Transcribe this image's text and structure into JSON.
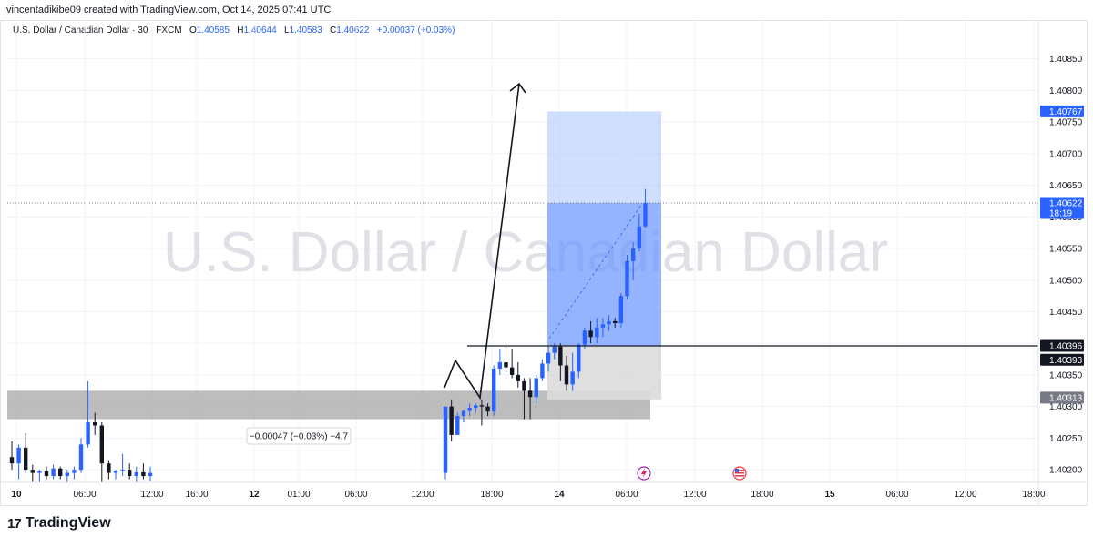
{
  "header": {
    "credit": "vincentadikibe09 created with TradingView.com, Oct 14, 2025 07:41 UTC"
  },
  "symbol": {
    "name": "U.S. Dollar / Canadian Dollar · 30 · FXCM",
    "open_label": "O",
    "open": "1.40585",
    "high_label": "H",
    "high": "1.40644",
    "low_label": "L",
    "low": "1.40583",
    "close_label": "C",
    "close": "1.40622",
    "change": "+0.00037 (+0.03%)"
  },
  "colors": {
    "up": "#2962ff",
    "down": "#131722",
    "target_zone": "#aac4fb",
    "stop_zone": "#dcdcdc",
    "support_zone": "#b2b2b2",
    "price_label": "#2962ff",
    "dark_label": "#131722",
    "gray_label": "#787b86"
  },
  "brand": {
    "name": "TradingView",
    "logo_icon": "tradingview-logo-icon"
  },
  "chart_data": {
    "type": "candlestick",
    "title": "",
    "watermark": "U.S. Dollar / Canadian Dollar",
    "ylim": [
      1.4018,
      1.4091
    ],
    "y_ticks": [
      "1.40200",
      "1.40250",
      "1.40300",
      "1.40350",
      "1.40400",
      "1.40450",
      "1.40500",
      "1.40550",
      "1.40600",
      "1.40650",
      "1.40700",
      "1.40750",
      "1.40800",
      "1.40850"
    ],
    "x_ticks": [
      "10",
      "06:00",
      "12:00",
      "16:00",
      "12",
      "01:00",
      "06:00",
      "12:00",
      "18:00",
      "14",
      "06:00",
      "12:00",
      "18:00",
      "15",
      "06:00",
      "12:00",
      "18:00"
    ],
    "x_tick_bold": [
      "10",
      "12",
      "14",
      "15"
    ],
    "candles": [
      {
        "o": 1.4022,
        "h": 1.40245,
        "l": 1.402,
        "c": 1.4021
      },
      {
        "o": 1.4021,
        "h": 1.4024,
        "l": 1.40185,
        "c": 1.40235
      },
      {
        "o": 1.40235,
        "h": 1.40258,
        "l": 1.40195,
        "c": 1.402
      },
      {
        "o": 1.402,
        "h": 1.40208,
        "l": 1.4018,
        "c": 1.40195
      },
      {
        "o": 1.40195,
        "h": 1.402,
        "l": 1.4018,
        "c": 1.40198
      },
      {
        "o": 1.40198,
        "h": 1.40205,
        "l": 1.40185,
        "c": 1.4019
      },
      {
        "o": 1.4019,
        "h": 1.40208,
        "l": 1.40185,
        "c": 1.40202
      },
      {
        "o": 1.40202,
        "h": 1.40205,
        "l": 1.40185,
        "c": 1.4019
      },
      {
        "o": 1.4019,
        "h": 1.402,
        "l": 1.4018,
        "c": 1.40195
      },
      {
        "o": 1.40195,
        "h": 1.40205,
        "l": 1.40185,
        "c": 1.402
      },
      {
        "o": 1.402,
        "h": 1.4025,
        "l": 1.40195,
        "c": 1.4024
      },
      {
        "o": 1.4024,
        "h": 1.4034,
        "l": 1.40235,
        "c": 1.40275
      },
      {
        "o": 1.40275,
        "h": 1.4029,
        "l": 1.40255,
        "c": 1.4027
      },
      {
        "o": 1.4027,
        "h": 1.40275,
        "l": 1.4018,
        "c": 1.4021
      },
      {
        "o": 1.4021,
        "h": 1.40215,
        "l": 1.40185,
        "c": 1.40195
      },
      {
        "o": 1.40195,
        "h": 1.402,
        "l": 1.40185,
        "c": 1.40198
      },
      {
        "o": 1.40198,
        "h": 1.40225,
        "l": 1.4019,
        "c": 1.402
      },
      {
        "o": 1.402,
        "h": 1.4021,
        "l": 1.40185,
        "c": 1.4019
      },
      {
        "o": 1.4019,
        "h": 1.40205,
        "l": 1.4018,
        "c": 1.40196
      },
      {
        "o": 1.40196,
        "h": 1.4021,
        "l": 1.40185,
        "c": 1.4019
      },
      {
        "o": 1.4019,
        "h": 1.40205,
        "l": 1.40182,
        "c": 1.40195
      },
      {
        "o": 1.40195,
        "h": 1.403,
        "l": 1.40185,
        "c": 1.403
      },
      {
        "o": 1.403,
        "h": 1.4031,
        "l": 1.40245,
        "c": 1.40255
      },
      {
        "o": 1.40255,
        "h": 1.4029,
        "l": 1.40255,
        "c": 1.40285
      },
      {
        "o": 1.40285,
        "h": 1.40295,
        "l": 1.40275,
        "c": 1.40293
      },
      {
        "o": 1.40293,
        "h": 1.40305,
        "l": 1.40285,
        "c": 1.40298
      },
      {
        "o": 1.40298,
        "h": 1.40305,
        "l": 1.4029,
        "c": 1.40302
      },
      {
        "o": 1.40302,
        "h": 1.4031,
        "l": 1.4027,
        "c": 1.403
      },
      {
        "o": 1.403,
        "h": 1.40305,
        "l": 1.40285,
        "c": 1.40292
      },
      {
        "o": 1.40292,
        "h": 1.40365,
        "l": 1.40285,
        "c": 1.4036
      },
      {
        "o": 1.4036,
        "h": 1.4039,
        "l": 1.4035,
        "c": 1.4037
      },
      {
        "o": 1.4037,
        "h": 1.40395,
        "l": 1.40355,
        "c": 1.40362
      },
      {
        "o": 1.40362,
        "h": 1.4039,
        "l": 1.40345,
        "c": 1.4035
      },
      {
        "o": 1.4035,
        "h": 1.4037,
        "l": 1.4033,
        "c": 1.4034
      },
      {
        "o": 1.4034,
        "h": 1.40345,
        "l": 1.4028,
        "c": 1.40325
      },
      {
        "o": 1.40325,
        "h": 1.40345,
        "l": 1.4028,
        "c": 1.40315
      },
      {
        "o": 1.40315,
        "h": 1.4035,
        "l": 1.40305,
        "c": 1.40345
      },
      {
        "o": 1.40345,
        "h": 1.40375,
        "l": 1.4034,
        "c": 1.40368
      },
      {
        "o": 1.40368,
        "h": 1.40395,
        "l": 1.40355,
        "c": 1.40385
      },
      {
        "o": 1.40385,
        "h": 1.404,
        "l": 1.40375,
        "c": 1.40395
      },
      {
        "o": 1.40395,
        "h": 1.404,
        "l": 1.4034,
        "c": 1.40365
      },
      {
        "o": 1.40365,
        "h": 1.4038,
        "l": 1.40325,
        "c": 1.40335
      },
      {
        "o": 1.40335,
        "h": 1.40385,
        "l": 1.40325,
        "c": 1.40355
      },
      {
        "o": 1.40355,
        "h": 1.404,
        "l": 1.40345,
        "c": 1.40398
      },
      {
        "o": 1.40398,
        "h": 1.40425,
        "l": 1.4039,
        "c": 1.4042
      },
      {
        "o": 1.4042,
        "h": 1.40435,
        "l": 1.404,
        "c": 1.4041
      },
      {
        "o": 1.4041,
        "h": 1.4044,
        "l": 1.404,
        "c": 1.40425
      },
      {
        "o": 1.40425,
        "h": 1.4044,
        "l": 1.4041,
        "c": 1.4043
      },
      {
        "o": 1.4043,
        "h": 1.40445,
        "l": 1.4042,
        "c": 1.40435
      },
      {
        "o": 1.40435,
        "h": 1.4044,
        "l": 1.40425,
        "c": 1.40432
      },
      {
        "o": 1.40432,
        "h": 1.4048,
        "l": 1.40425,
        "c": 1.40475
      },
      {
        "o": 1.40475,
        "h": 1.4054,
        "l": 1.4047,
        "c": 1.4053
      },
      {
        "o": 1.4053,
        "h": 1.4056,
        "l": 1.405,
        "c": 1.4055
      },
      {
        "o": 1.4055,
        "h": 1.40605,
        "l": 1.40545,
        "c": 1.40585
      },
      {
        "o": 1.40585,
        "h": 1.40644,
        "l": 1.40583,
        "c": 1.40622
      }
    ],
    "price_levels": {
      "current_price": 1.40622,
      "target": 1.40767,
      "entry_line": 1.40396,
      "entry_label": 1.40393,
      "stop": 1.40313,
      "zone_high": 1.40325,
      "zone_low": 1.4028
    },
    "axis_labels": {
      "target": "1.40767",
      "current": "1.40622",
      "countdown": "18:19",
      "entry": "1.40396",
      "entry2": "1.40393",
      "stop": "1.40313"
    },
    "measure_label": "−0.00047 (−0.03%) −4.7"
  }
}
